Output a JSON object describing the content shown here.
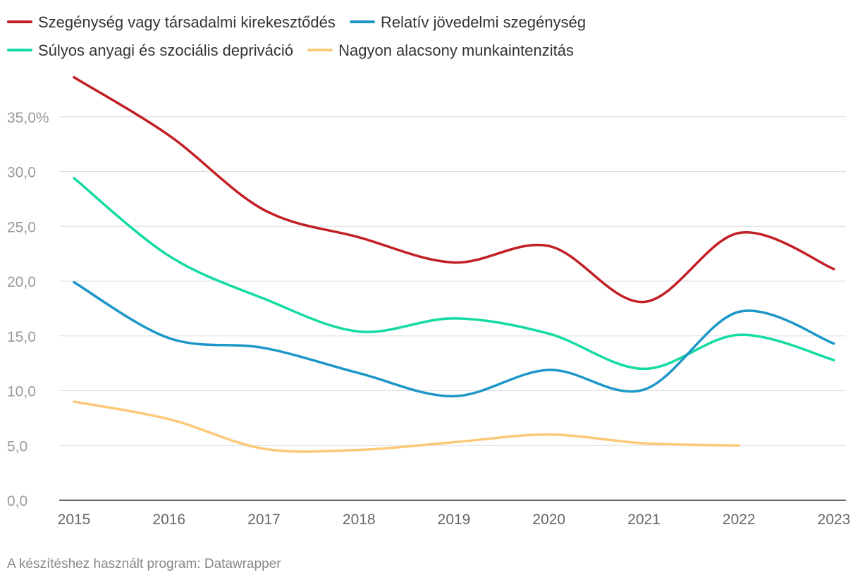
{
  "chart_data": {
    "type": "line",
    "title": "",
    "xlabel": "",
    "ylabel": "",
    "categories": [
      "2015",
      "2016",
      "2017",
      "2018",
      "2019",
      "2020",
      "2021",
      "2022",
      "2023"
    ],
    "ylim": [
      0,
      38
    ],
    "yticks": [
      0,
      5,
      10,
      15,
      20,
      25,
      30,
      35
    ],
    "ytick_labels": [
      "0,0",
      "5,0",
      "10,0",
      "15,0",
      "20,0",
      "25,0",
      "30,0",
      "35,0%"
    ],
    "grid": true,
    "legend_position": "top",
    "series": [
      {
        "name": "Szegénység vagy társadalmi kirekesztődés",
        "color": "#c21f24",
        "values": [
          38.6,
          33.3,
          26.5,
          24.0,
          21.7,
          23.2,
          18.1,
          24.4,
          21.1
        ]
      },
      {
        "name": "Relatív jövedelmi szegénység",
        "color": "#1d97c8",
        "values": [
          19.9,
          14.8,
          13.9,
          11.6,
          9.5,
          11.9,
          10.1,
          17.2,
          14.3
        ]
      },
      {
        "name": "Súlyos anyagi és szociális depriváció",
        "color": "#13dba2",
        "values": [
          29.4,
          22.3,
          18.4,
          15.4,
          16.6,
          15.2,
          12.0,
          15.1,
          12.8
        ]
      },
      {
        "name": "Nagyon alacsony munkaintenzitás",
        "color": "#fcc979",
        "values": [
          9.0,
          7.4,
          4.7,
          4.6,
          5.3,
          6.0,
          5.2,
          5.0,
          null
        ]
      }
    ]
  },
  "legend": {
    "item0": "Szegénység vagy társadalmi kirekesztődés",
    "item1": "Relatív jövedelmi szegénység",
    "item2": "Súlyos anyagi és szociális depriváció",
    "item3": "Nagyon alacsony munkaintenzitás"
  },
  "colors": {
    "series0": "#c21f24",
    "series1": "#1d97c8",
    "series2": "#13dba2",
    "series3": "#fcc979"
  },
  "footer": {
    "source": "A készítéshez használt program: Datawrapper"
  }
}
